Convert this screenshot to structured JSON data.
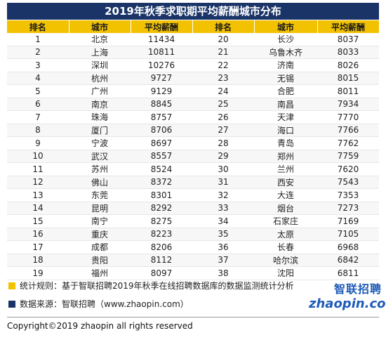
{
  "title": "2019年秋季求职期平均薪酬城市分布",
  "headers": [
    "排名",
    "城市",
    "平均薪酬",
    "排名",
    "城市",
    "平均薪酬"
  ],
  "rows": [
    [
      [
        "1",
        "北京",
        "11434"
      ],
      [
        "20",
        "长沙",
        "8037"
      ]
    ],
    [
      [
        "2",
        "上海",
        "10811"
      ],
      [
        "21",
        "乌鲁木齐",
        "8033"
      ]
    ],
    [
      [
        "3",
        "深圳",
        "10276"
      ],
      [
        "22",
        "济南",
        "8026"
      ]
    ],
    [
      [
        "4",
        "杭州",
        "9727"
      ],
      [
        "23",
        "无锡",
        "8015"
      ]
    ],
    [
      [
        "5",
        "广州",
        "9129"
      ],
      [
        "24",
        "合肥",
        "8011"
      ]
    ],
    [
      [
        "6",
        "南京",
        "8845"
      ],
      [
        "25",
        "南昌",
        "7934"
      ]
    ],
    [
      [
        "7",
        "珠海",
        "8757"
      ],
      [
        "26",
        "天津",
        "7770"
      ]
    ],
    [
      [
        "8",
        "厦门",
        "8706"
      ],
      [
        "27",
        "海口",
        "7766"
      ]
    ],
    [
      [
        "9",
        "宁波",
        "8697"
      ],
      [
        "28",
        "青岛",
        "7762"
      ]
    ],
    [
      [
        "10",
        "武汉",
        "8557"
      ],
      [
        "29",
        "郑州",
        "7759"
      ]
    ],
    [
      [
        "11",
        "苏州",
        "8524"
      ],
      [
        "30",
        "兰州",
        "7620"
      ]
    ],
    [
      [
        "12",
        "佛山",
        "8372"
      ],
      [
        "31",
        "西安",
        "7543"
      ]
    ],
    [
      [
        "13",
        "东莞",
        "8301"
      ],
      [
        "32",
        "大连",
        "7353"
      ]
    ],
    [
      [
        "14",
        "昆明",
        "8292"
      ],
      [
        "33",
        "烟台",
        "7273"
      ]
    ],
    [
      [
        "15",
        "南宁",
        "8275"
      ],
      [
        "34",
        "石家庄",
        "7169"
      ]
    ],
    [
      [
        "16",
        "重庆",
        "8223"
      ],
      [
        "35",
        "太原",
        "7105"
      ]
    ],
    [
      [
        "17",
        "成都",
        "8206"
      ],
      [
        "36",
        "长春",
        "6968"
      ]
    ],
    [
      [
        "18",
        "贵阳",
        "8112"
      ],
      [
        "37",
        "哈尔滨",
        "6842"
      ]
    ],
    [
      [
        "19",
        "福州",
        "8097"
      ],
      [
        "38",
        "沈阳",
        "6811"
      ]
    ]
  ],
  "notes": {
    "rule": "统计规则：基于智联招聘2019年秋季在线招聘数据库的数据监测统计分析",
    "source": "数据来源：智联招聘（www.zhaopin.com）"
  },
  "logo": {
    "cn": "智联招聘",
    "en": "zhaopin.com"
  },
  "copyright": "Copyright©2019 zhaopin all rights reserved",
  "colors": {
    "header_bg": "#f2c200",
    "title_bg": "#1a3468",
    "logo": "#1e5bb8"
  }
}
